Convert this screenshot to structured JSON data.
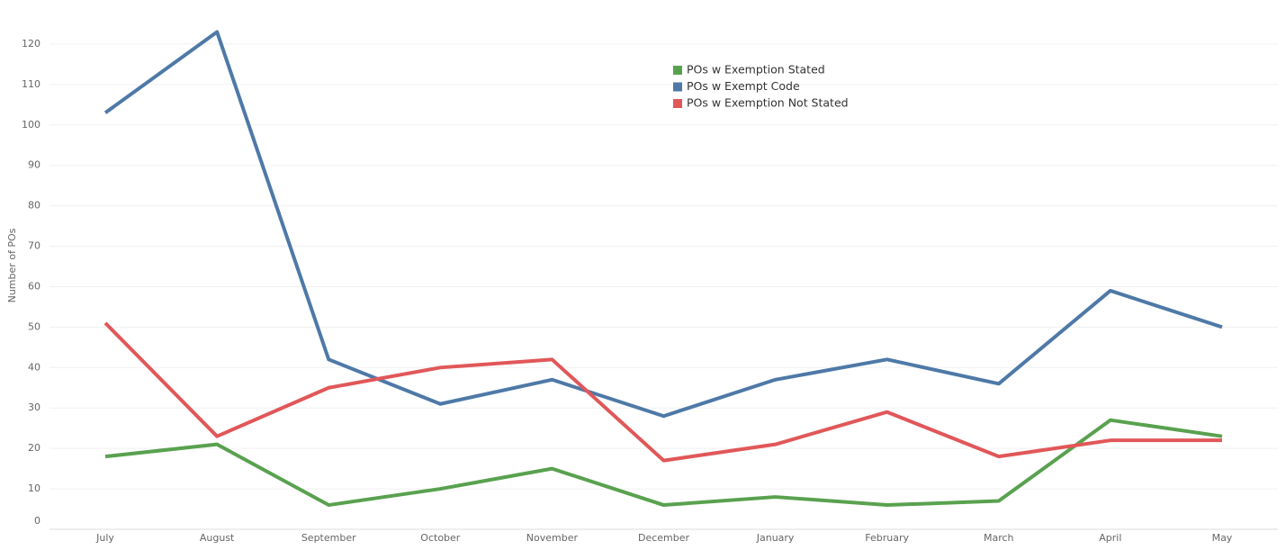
{
  "chart_data": {
    "type": "line",
    "y_label": "Number of POs",
    "categories": [
      "July",
      "August",
      "September",
      "October",
      "November",
      "December",
      "January",
      "February",
      "March",
      "April",
      "May"
    ],
    "series": [
      {
        "name": "POs w Exemption Stated",
        "color": "#59a14f",
        "values": [
          18,
          21,
          6,
          10,
          15,
          6,
          8,
          6,
          7,
          27,
          23
        ]
      },
      {
        "name": "POs w Exempt Code",
        "color": "#4e79a7",
        "values": [
          103,
          123,
          42,
          31,
          37,
          28,
          37,
          42,
          36,
          59,
          50
        ]
      },
      {
        "name": "POs w Exemption Not Stated",
        "color": "#e15759",
        "values": [
          51,
          23,
          35,
          40,
          42,
          17,
          21,
          29,
          18,
          22,
          22
        ]
      }
    ],
    "ylim": [
      0,
      130
    ],
    "yticks": [
      0,
      10,
      20,
      30,
      40,
      50,
      60,
      70,
      80,
      90,
      100,
      110,
      120
    ],
    "grid": true,
    "legend": "top"
  }
}
